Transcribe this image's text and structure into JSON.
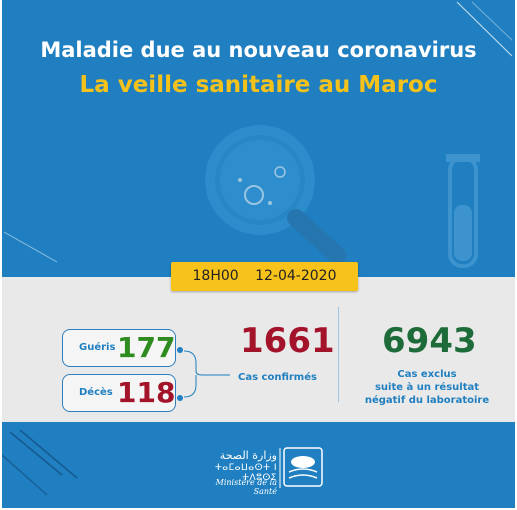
{
  "header": {
    "title_line1": "Maladie due au nouveau coronavirus",
    "title_line2": "La veille sanitaire au Maroc"
  },
  "update": {
    "time": "18H00",
    "date": "12-04-2020"
  },
  "stats": {
    "recovered_label": "Guéris",
    "recovered_value": "177",
    "deaths_label": "Décès",
    "deaths_value": "118",
    "confirmed_value": "1661",
    "confirmed_label": "Cas confirmés",
    "excluded_value": "6943",
    "excluded_label_line1": "Cas exclus",
    "excluded_label_line2": "suite à un résultat",
    "excluded_label_line3": "négatif du laboratoire"
  },
  "footer": {
    "ministry_arabic": "وزارة الصحة",
    "ministry_tifinagh": "ⵜⴰⵎⴰⵡⴰⵙⵜ ⵏ ⵜⴷⵓⵙⵉ",
    "ministry_french": "Ministère de la Santé"
  },
  "colors": {
    "background": "#1f7fc0",
    "title_yellow": "#f5c21b",
    "recovered_green": "#2e8b1f",
    "deaths_red": "#a3142a",
    "excluded_green": "#1e6b3a"
  },
  "icons": [
    "magnifier-virus-illustration",
    "test-tube-illustration",
    "ministry-logo"
  ]
}
